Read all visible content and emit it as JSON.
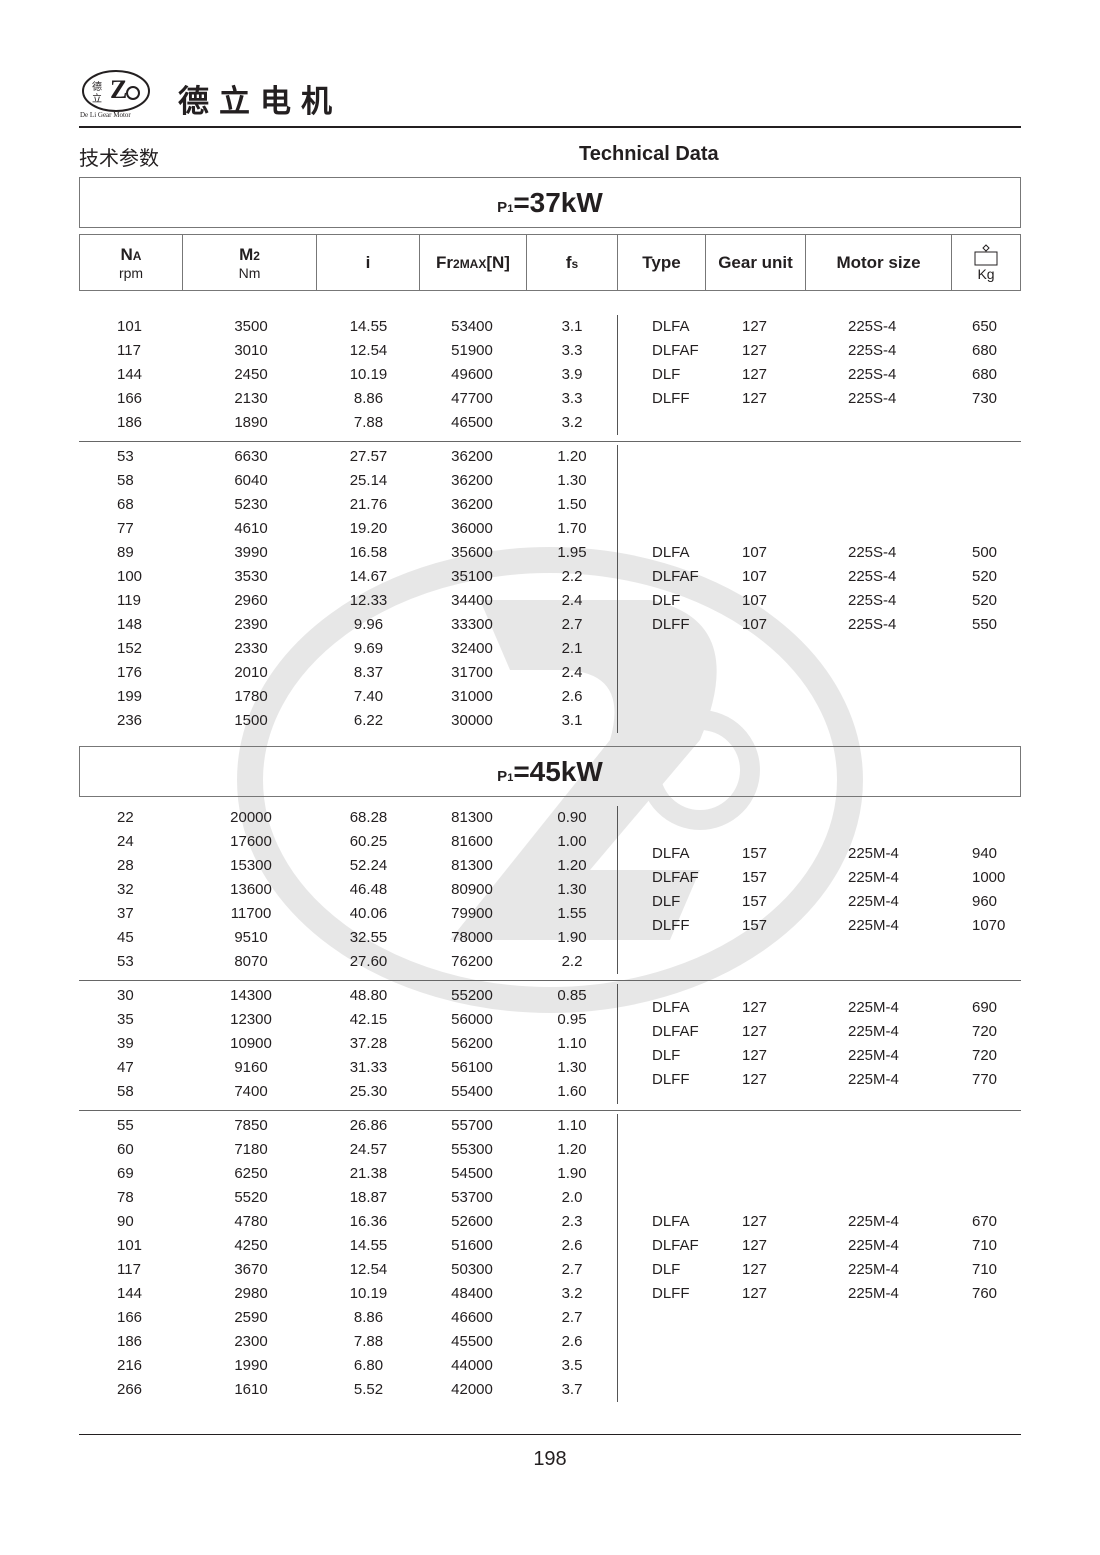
{
  "header": {
    "brand": "德立电机",
    "logo_text": "De Li Gear Motor",
    "cn_title": "技术参数",
    "en_title": "Technical Data"
  },
  "columns": {
    "na": "NA",
    "na_sub": "A",
    "na_unit": "rpm",
    "m2": "M",
    "m2_sub": "2",
    "m2_unit": "Nm",
    "i": "i",
    "fr": "Fr",
    "fr_sub": "2MAX",
    "fr_tail": "[N]",
    "fs": "f",
    "fs_sub": "s",
    "type": "Type",
    "gear_unit": "Gear unit",
    "motor_size": "Motor size",
    "kg": "Kg",
    "kg_icon": "weight-icon"
  },
  "sections": [
    {
      "power_prefix": "P",
      "power_sub": "1",
      "power_value": "=37kW",
      "groups": [
        {
          "rows": [
            [
              "101",
              "3500",
              "14.55",
              "53400",
              "3.1"
            ],
            [
              "117",
              "3010",
              "12.54",
              "51900",
              "3.3"
            ],
            [
              "144",
              "2450",
              "10.19",
              "49600",
              "3.9"
            ],
            [
              "166",
              "2130",
              "8.86",
              "47700",
              "3.3"
            ],
            [
              "186",
              "1890",
              "7.88",
              "46500",
              "3.2"
            ]
          ],
          "types": [
            [
              "DLFA",
              "127",
              "225S-4",
              "650"
            ],
            [
              "DLFAF",
              "127",
              "225S-4",
              "680"
            ],
            [
              "DLF",
              "127",
              "225S-4",
              "680"
            ],
            [
              "DLFF",
              "127",
              "225S-4",
              "730"
            ]
          ]
        },
        {
          "rows": [
            [
              "53",
              "6630",
              "27.57",
              "36200",
              "1.20"
            ],
            [
              "58",
              "6040",
              "25.14",
              "36200",
              "1.30"
            ],
            [
              "68",
              "5230",
              "21.76",
              "36200",
              "1.50"
            ],
            [
              "77",
              "4610",
              "19.20",
              "36000",
              "1.70"
            ],
            [
              "89",
              "3990",
              "16.58",
              "35600",
              "1.95"
            ],
            [
              "100",
              "3530",
              "14.67",
              "35100",
              "2.2"
            ],
            [
              "119",
              "2960",
              "12.33",
              "34400",
              "2.4"
            ],
            [
              "148",
              "2390",
              "9.96",
              "33300",
              "2.7"
            ],
            [
              "152",
              "2330",
              "9.69",
              "32400",
              "2.1"
            ],
            [
              "176",
              "2010",
              "8.37",
              "31700",
              "2.4"
            ],
            [
              "199",
              "1780",
              "7.40",
              "31000",
              "2.6"
            ],
            [
              "236",
              "1500",
              "6.22",
              "30000",
              "3.1"
            ]
          ],
          "types": [
            [
              "DLFA",
              "107",
              "225S-4",
              "500"
            ],
            [
              "DLFAF",
              "107",
              "225S-4",
              "520"
            ],
            [
              "DLF",
              "107",
              "225S-4",
              "520"
            ],
            [
              "DLFF",
              "107",
              "225S-4",
              "550"
            ]
          ]
        }
      ]
    },
    {
      "power_prefix": "P",
      "power_sub": "1",
      "power_value": "=45kW",
      "groups": [
        {
          "rows": [
            [
              "22",
              "20000",
              "68.28",
              "81300",
              "0.90"
            ],
            [
              "24",
              "17600",
              "60.25",
              "81600",
              "1.00"
            ],
            [
              "28",
              "15300",
              "52.24",
              "81300",
              "1.20"
            ],
            [
              "32",
              "13600",
              "46.48",
              "80900",
              "1.30"
            ],
            [
              "37",
              "11700",
              "40.06",
              "79900",
              "1.55"
            ],
            [
              "45",
              "9510",
              "32.55",
              "78000",
              "1.90"
            ],
            [
              "53",
              "8070",
              "27.60",
              "76200",
              "2.2"
            ]
          ],
          "types": [
            [
              "DLFA",
              "157",
              "225M-4",
              "940"
            ],
            [
              "DLFAF",
              "157",
              "225M-4",
              "1000"
            ],
            [
              "DLF",
              "157",
              "225M-4",
              "960"
            ],
            [
              "DLFF",
              "157",
              "225M-4",
              "1070"
            ]
          ]
        },
        {
          "rows": [
            [
              "30",
              "14300",
              "48.80",
              "55200",
              "0.85"
            ],
            [
              "35",
              "12300",
              "42.15",
              "56000",
              "0.95"
            ],
            [
              "39",
              "10900",
              "37.28",
              "56200",
              "1.10"
            ],
            [
              "47",
              "9160",
              "31.33",
              "56100",
              "1.30"
            ],
            [
              "58",
              "7400",
              "25.30",
              "55400",
              "1.60"
            ]
          ],
          "types": [
            [
              "DLFA",
              "127",
              "225M-4",
              "690"
            ],
            [
              "DLFAF",
              "127",
              "225M-4",
              "720"
            ],
            [
              "DLF",
              "127",
              "225M-4",
              "720"
            ],
            [
              "DLFF",
              "127",
              "225M-4",
              "770"
            ]
          ]
        },
        {
          "rows": [
            [
              "55",
              "7850",
              "26.86",
              "55700",
              "1.10"
            ],
            [
              "60",
              "7180",
              "24.57",
              "55300",
              "1.20"
            ],
            [
              "69",
              "6250",
              "21.38",
              "54500",
              "1.90"
            ],
            [
              "78",
              "5520",
              "18.87",
              "53700",
              "2.0"
            ],
            [
              "90",
              "4780",
              "16.36",
              "52600",
              "2.3"
            ],
            [
              "101",
              "4250",
              "14.55",
              "51600",
              "2.6"
            ],
            [
              "117",
              "3670",
              "12.54",
              "50300",
              "2.7"
            ],
            [
              "144",
              "2980",
              "10.19",
              "48400",
              "3.2"
            ],
            [
              "166",
              "2590",
              "8.86",
              "46600",
              "2.7"
            ],
            [
              "186",
              "2300",
              "7.88",
              "45500",
              "2.6"
            ],
            [
              "216",
              "1990",
              "6.80",
              "44000",
              "3.5"
            ],
            [
              "266",
              "1610",
              "5.52",
              "42000",
              "3.7"
            ]
          ],
          "types": [
            [
              "DLFA",
              "127",
              "225M-4",
              "670"
            ],
            [
              "DLFAF",
              "127",
              "225M-4",
              "710"
            ],
            [
              "DLF",
              "127",
              "225M-4",
              "710"
            ],
            [
              "DLFF",
              "127",
              "225M-4",
              "760"
            ]
          ]
        }
      ]
    }
  ],
  "footer": {
    "page_number": "198"
  }
}
